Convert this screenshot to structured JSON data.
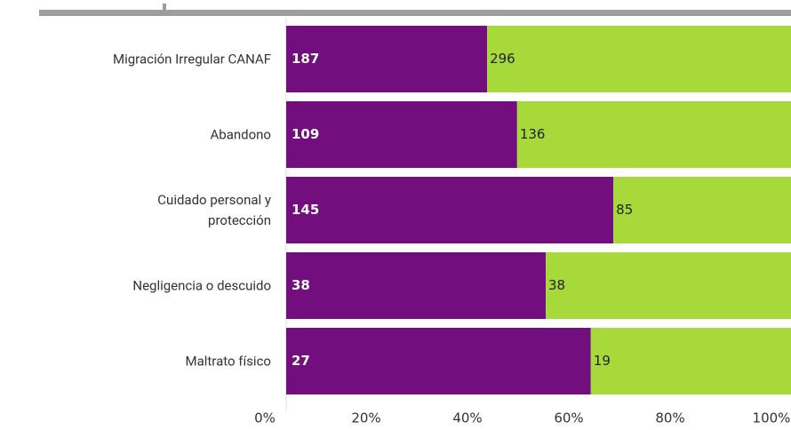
{
  "chart_data": {
    "type": "bar",
    "orientation": "horizontal",
    "stacking": "percent",
    "categories": [
      "Migración Irregular CANAF",
      "Abandono",
      "Cuidado personal y\nprotección",
      "Negligencia o descuido",
      "Maltrato físico"
    ],
    "series": [
      {
        "color": "#720e7e",
        "values": [
          187,
          109,
          145,
          38,
          27
        ]
      },
      {
        "color": "#a8d93a",
        "values": [
          296,
          136,
          85,
          38,
          19
        ]
      }
    ],
    "xlim": [
      0,
      100
    ],
    "xticks": [
      {
        "value": 0,
        "label": "0%"
      },
      {
        "value": 20,
        "label": "20%"
      },
      {
        "value": 40,
        "label": "40%"
      },
      {
        "value": 60,
        "label": "60%"
      },
      {
        "value": 80,
        "label": "80%"
      },
      {
        "value": 100,
        "label": "100%"
      }
    ]
  }
}
